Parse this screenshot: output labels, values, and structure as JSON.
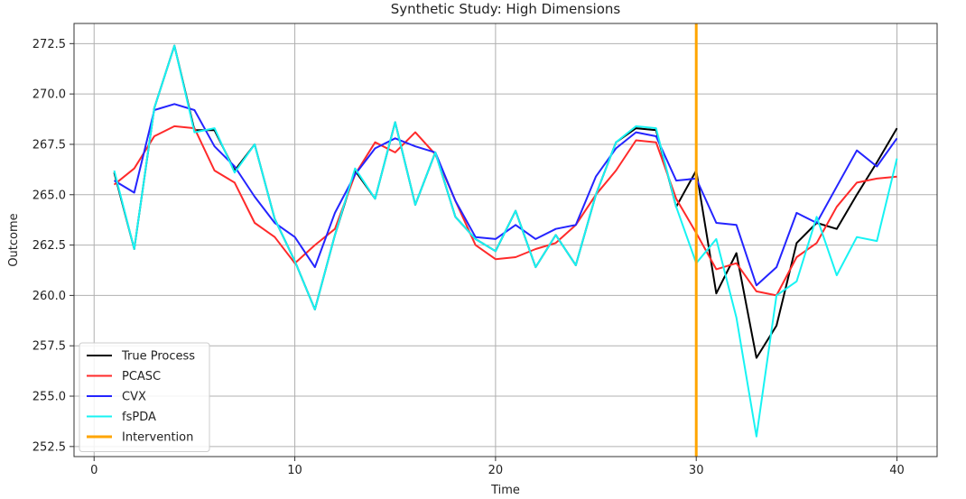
{
  "chart_data": {
    "type": "line",
    "title": "Synthetic Study: High Dimensions",
    "xlabel": "Time",
    "ylabel": "Outcome",
    "xlim": [
      -1,
      42
    ],
    "ylim": [
      252,
      273.5
    ],
    "xticks": [
      0,
      10,
      20,
      30,
      40
    ],
    "xtick_labels": [
      "0",
      "10",
      "20",
      "30",
      "40"
    ],
    "yticks": [
      252.5,
      255.0,
      257.5,
      260.0,
      262.5,
      265.0,
      267.5,
      270.0,
      272.5
    ],
    "ytick_labels": [
      "252.5",
      "255.0",
      "257.5",
      "260.0",
      "262.5",
      "265.0",
      "267.5",
      "270.0",
      "272.5"
    ],
    "grid": true,
    "legend_position": "lower-left",
    "x": [
      1,
      2,
      3,
      4,
      5,
      6,
      7,
      8,
      9,
      10,
      11,
      12,
      13,
      14,
      15,
      16,
      17,
      18,
      19,
      20,
      21,
      22,
      23,
      24,
      25,
      26,
      27,
      28,
      29,
      30,
      31,
      32,
      33,
      34,
      35,
      36,
      37,
      38,
      39,
      40
    ],
    "series": [
      {
        "name": "True Process",
        "color": "#000000",
        "values": [
          266.1,
          262.3,
          269.3,
          272.4,
          268.2,
          268.2,
          266.2,
          267.5,
          263.8,
          261.7,
          259.3,
          263.0,
          266.2,
          264.8,
          268.6,
          264.5,
          267.1,
          263.9,
          262.8,
          262.2,
          264.2,
          261.4,
          263.0,
          261.5,
          265.0,
          267.6,
          268.3,
          268.2,
          264.4,
          266.2,
          260.1,
          262.1,
          256.9,
          258.5,
          262.6,
          263.6,
          263.3,
          265.0,
          266.6,
          268.3
        ]
      },
      {
        "name": "PCASC",
        "color": "#ff2a2a",
        "values": [
          265.5,
          266.3,
          267.9,
          268.4,
          268.3,
          266.2,
          265.6,
          263.6,
          262.9,
          261.6,
          262.5,
          263.3,
          266.0,
          267.6,
          267.1,
          268.1,
          267.0,
          264.7,
          262.5,
          261.8,
          261.9,
          262.3,
          262.6,
          263.5,
          265.0,
          266.2,
          267.7,
          267.6,
          264.8,
          263.1,
          261.3,
          261.6,
          260.2,
          260.0,
          261.9,
          262.6,
          264.4,
          265.6,
          265.8,
          265.9
        ]
      },
      {
        "name": "CVX",
        "color": "#2424ff",
        "values": [
          265.7,
          265.1,
          269.2,
          269.5,
          269.2,
          267.4,
          266.4,
          264.9,
          263.6,
          262.9,
          261.4,
          264.1,
          266.0,
          267.3,
          267.8,
          267.4,
          267.1,
          264.7,
          262.9,
          262.8,
          263.5,
          262.8,
          263.3,
          263.5,
          265.9,
          267.3,
          268.1,
          267.9,
          265.7,
          265.8,
          263.6,
          263.5,
          260.5,
          261.4,
          264.1,
          263.6,
          265.4,
          267.2,
          266.4,
          267.8
        ]
      },
      {
        "name": "fsPDA",
        "color": "#17f3f3",
        "values": [
          266.2,
          262.3,
          269.3,
          272.4,
          268.1,
          268.3,
          266.1,
          267.5,
          263.8,
          261.7,
          259.3,
          263.0,
          266.3,
          264.8,
          268.6,
          264.5,
          267.1,
          263.9,
          262.8,
          262.2,
          264.2,
          261.4,
          263.0,
          261.5,
          265.0,
          267.6,
          268.4,
          268.3,
          264.4,
          261.6,
          262.8,
          258.9,
          253.0,
          260.0,
          260.7,
          263.9,
          261.0,
          262.9,
          262.7,
          266.8
        ]
      }
    ],
    "vlines": [
      {
        "name": "Intervention",
        "color": "#ffa500",
        "x": 30
      }
    ]
  }
}
